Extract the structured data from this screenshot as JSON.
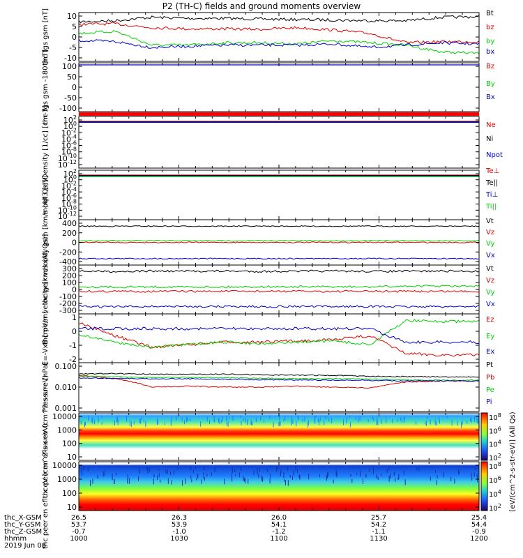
{
  "title": "P2 (TH-C) fields and ground moments overview",
  "colors": {
    "black": "#000000",
    "red": "#e00000",
    "green": "#00d000",
    "blue": "#0000d0"
  },
  "x_ticks": [
    "1000",
    "1030",
    "1100",
    "1130",
    "1200"
  ],
  "ephemeris": {
    "labels": [
      "thc_X-GSM",
      "thc_Y-GSM",
      "thc_Z-GSM",
      "hhmm",
      "2019 Jun 08"
    ],
    "rows": [
      [
        "26.5",
        "26.3",
        "26.0",
        "25.7",
        "25.4"
      ],
      [
        "53.7",
        "53.9",
        "54.1",
        "54.2",
        "54.4"
      ],
      [
        "-0.7",
        "-1.0",
        "-1.2",
        "-1.1",
        "-0.9"
      ],
      [
        "1000",
        "1030",
        "1100",
        "1130",
        "1200"
      ]
    ]
  },
  "colorbar": {
    "label": "[eV/(cm^2-s-str-eV)] (All Qs)",
    "ticks_top": [
      "10^8",
      "10^6",
      "10^4",
      "10^2"
    ],
    "ticks_bottom": [
      "10^8",
      "10^6",
      "10^4",
      "10^2"
    ]
  },
  "chart_data": [
    {
      "type": "line",
      "ylabel": "thc fgs gsm [nT]",
      "yticks": [
        "10",
        "5",
        "0",
        "-5",
        "-10"
      ],
      "ylim": [
        -10,
        11
      ],
      "series": [
        {
          "name": "Bt",
          "color": "black",
          "values": [
            7,
            7.5,
            9,
            8.5,
            8.5,
            8.2,
            8,
            7.8,
            7.5,
            7.5,
            9,
            9.2
          ]
        },
        {
          "name": "bz",
          "color": "red",
          "values": [
            6,
            6.2,
            4.5,
            4,
            4,
            3.8,
            4.5,
            3.5,
            2,
            -2,
            -1.5,
            -1.5
          ]
        },
        {
          "name": "by",
          "color": "green",
          "values": [
            2,
            3,
            -3,
            -3,
            -2,
            -2,
            -2.5,
            -1,
            -2,
            -3,
            -6,
            -6.5
          ]
        },
        {
          "name": "bx",
          "color": "blue",
          "values": [
            -1,
            -1.5,
            -4,
            -3.5,
            -3,
            -3,
            -3,
            -2.5,
            -4,
            -3,
            -2,
            -2.5
          ]
        }
      ]
    },
    {
      "type": "line",
      "ylabel": "thc fgs gsm -180 [nT]",
      "yticks": [
        "100",
        "50",
        "0",
        "-50",
        "-100"
      ],
      "ylim": [
        -140,
        110
      ],
      "series": [
        {
          "name": "Bz",
          "color": "red",
          "values": []
        },
        {
          "name": "By",
          "color": "green",
          "values": []
        },
        {
          "name": "Bx",
          "color": "blue",
          "values": [
            98,
            99,
            100,
            100,
            100,
            100,
            100,
            100,
            100,
            100,
            100,
            100
          ]
        }
      ]
    },
    {
      "type": "line",
      "ylabel": "Density [1/cc] [cm-3]",
      "yticks": [
        "10^2",
        "10^0",
        "10^-2",
        "10^-4",
        "10^-6",
        "10^-8",
        "10^-10",
        "10^-12"
      ],
      "log": true,
      "series": [
        {
          "name": "Ne",
          "color": "red"
        },
        {
          "name": "Ni",
          "color": "black"
        },
        {
          "name": "Npot",
          "color": "blue"
        }
      ]
    },
    {
      "type": "line",
      "ylabel": "moqt3 [eV]",
      "yticks": [
        "10^2",
        "10^0",
        "10^-2",
        "10^-4",
        "10^-6",
        "10^-8",
        "10^-10",
        "10^-12"
      ],
      "log": true,
      "series": [
        {
          "name": "Te⊥",
          "color": "red"
        },
        {
          "name": "Te||",
          "color": "black"
        },
        {
          "name": "Ti⊥",
          "color": "blue"
        },
        {
          "name": "Ti||",
          "color": "green"
        }
      ]
    },
    {
      "type": "line",
      "ylabel": "thc peir velocity gsm [km/s (All Qs)]",
      "yticks": [
        "400",
        "200",
        "0",
        "-200",
        "-400"
      ],
      "ylim": [
        -420,
        420
      ],
      "series": [
        {
          "name": "Vt",
          "color": "black",
          "values": [
            300,
            300,
            300,
            300,
            300,
            300,
            300,
            300,
            300,
            300,
            300,
            300
          ]
        },
        {
          "name": "Vz",
          "color": "red",
          "values": [
            0,
            0,
            0,
            0,
            0,
            0,
            0,
            0,
            0,
            0,
            0,
            0
          ]
        },
        {
          "name": "Vy",
          "color": "green",
          "values": [
            30,
            30,
            30,
            30,
            30,
            30,
            30,
            30,
            30,
            30,
            30,
            30
          ]
        },
        {
          "name": "Vx",
          "color": "blue",
          "values": [
            -300,
            -300,
            -300,
            -300,
            -300,
            -300,
            -300,
            -300,
            -300,
            -300,
            -300,
            -300
          ]
        }
      ]
    },
    {
      "type": "line",
      "ylabel": "thc peer velocity [km/s (All Qs)]",
      "yticks": [
        "300",
        "200",
        "100",
        "0",
        "-100",
        "-200",
        "-300"
      ],
      "ylim": [
        -330,
        320
      ],
      "series": [
        {
          "name": "Vt",
          "color": "black",
          "values": [
            240,
            235,
            240,
            238,
            240,
            235,
            238,
            240,
            236,
            238,
            240,
            238
          ]
        },
        {
          "name": "Vz",
          "color": "red",
          "values": [
            -30,
            -30,
            -30,
            -30,
            -30,
            -30,
            -30,
            -30,
            -30,
            -30,
            -30,
            -30
          ]
        },
        {
          "name": "Vy",
          "color": "green",
          "values": [
            30,
            28,
            30,
            30,
            28,
            32,
            30,
            30,
            28,
            40,
            40,
            35
          ]
        },
        {
          "name": "Vx",
          "color": "blue",
          "values": [
            -230,
            -235,
            -230,
            -232,
            -230,
            -234,
            -230,
            -232,
            -230,
            -235,
            -232,
            -230
          ]
        }
      ]
    },
    {
      "type": "line",
      "ylabel": "E=-VxB [mV/m]",
      "yticks": [
        "1",
        "0",
        "-1",
        "-2"
      ],
      "ylim": [
        -2.6,
        1.2
      ],
      "series": [
        {
          "name": "Ez",
          "color": "red",
          "values": [
            0.5,
            -0.5,
            -1.4,
            -1.2,
            -1.0,
            -1.0,
            -0.9,
            -0.8,
            -0.5,
            -1.9,
            -2.0,
            -2.0
          ]
        },
        {
          "name": "Ey",
          "color": "green",
          "values": [
            -0.4,
            -1.0,
            -1.4,
            -1.2,
            -1.0,
            -1.1,
            -1.0,
            -0.9,
            -1.2,
            0.7,
            0.6,
            0.6
          ]
        },
        {
          "name": "Ex",
          "color": "blue",
          "values": [
            0.05,
            0.05,
            0.05,
            0.05,
            0.05,
            0.05,
            0.05,
            0.05,
            0.05,
            -1.0,
            -1.0,
            -1.0
          ]
        }
      ]
    },
    {
      "type": "line",
      "ylabel": "Pressure [nPa]",
      "yticks": [
        "0.100",
        "0.010",
        "0.001"
      ],
      "log": true,
      "series": [
        {
          "name": "Pt",
          "color": "black",
          "values": [
            0.035,
            0.036,
            0.034,
            0.033,
            0.034,
            0.032,
            0.031,
            0.03,
            0.028,
            0.027,
            0.026,
            0.026
          ]
        },
        {
          "name": "Pb",
          "color": "red",
          "values": [
            0.03,
            0.022,
            0.01,
            0.011,
            0.01,
            0.01,
            0.011,
            0.01,
            0.009,
            0.016,
            0.018,
            0.018
          ]
        },
        {
          "name": "Pe",
          "color": "green",
          "values": [
            0.028,
            0.027,
            0.025,
            0.025,
            0.024,
            0.023,
            0.022,
            0.022,
            0.021,
            0.02,
            0.019,
            0.019
          ]
        },
        {
          "name": "Pi",
          "color": "blue",
          "values": [
            0.024,
            0.023,
            0.022,
            0.022,
            0.021,
            0.02,
            0.02,
            0.019,
            0.019,
            0.018,
            0.018,
            0.018
          ]
        }
      ]
    },
    {
      "type": "heatmap",
      "ylabel": "thc peir en eflux eV (cm^2-s-sr-eV)",
      "yticks": [
        "10000",
        "1000",
        "100",
        "10"
      ]
    },
    {
      "type": "heatmap",
      "ylabel": "thc peer en eflux eV (cm^2-s-sr-eV)",
      "yticks": [
        "10000",
        "1000",
        "100",
        "10"
      ]
    }
  ]
}
